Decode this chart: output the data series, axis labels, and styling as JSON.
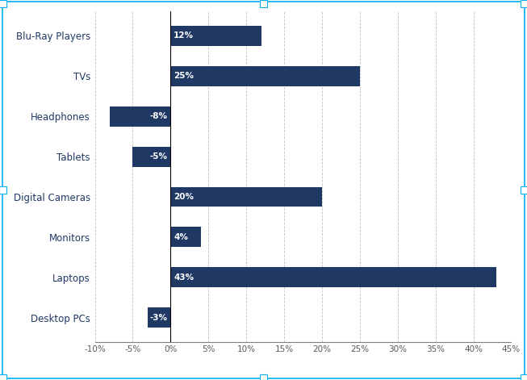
{
  "categories": [
    "Blu-Ray Players",
    "TVs",
    "Headphones",
    "Tablets",
    "Digital Cameras",
    "Monitors",
    "Laptops",
    "Desktop PCs"
  ],
  "values": [
    12,
    25,
    -8,
    -5,
    20,
    4,
    43,
    -3
  ],
  "bar_color": "#1F3864",
  "label_color": "#FFFFFF",
  "category_label_color": "#1F3864",
  "xlim": [
    -10,
    45
  ],
  "xticks": [
    -10,
    -5,
    0,
    5,
    10,
    15,
    20,
    25,
    30,
    35,
    40,
    45
  ],
  "xtick_labels": [
    "-10%",
    "-5%",
    "0%",
    "5%",
    "10%",
    "15%",
    "20%",
    "25%",
    "30%",
    "35%",
    "40%",
    "45%"
  ],
  "grid_color": "#C0C0C0",
  "background_color": "#FFFFFF",
  "border_color": "#00B0F0",
  "label_fontsize": 7.5,
  "category_fontsize": 8.5,
  "tick_fontsize": 7.5,
  "bar_height": 0.5
}
